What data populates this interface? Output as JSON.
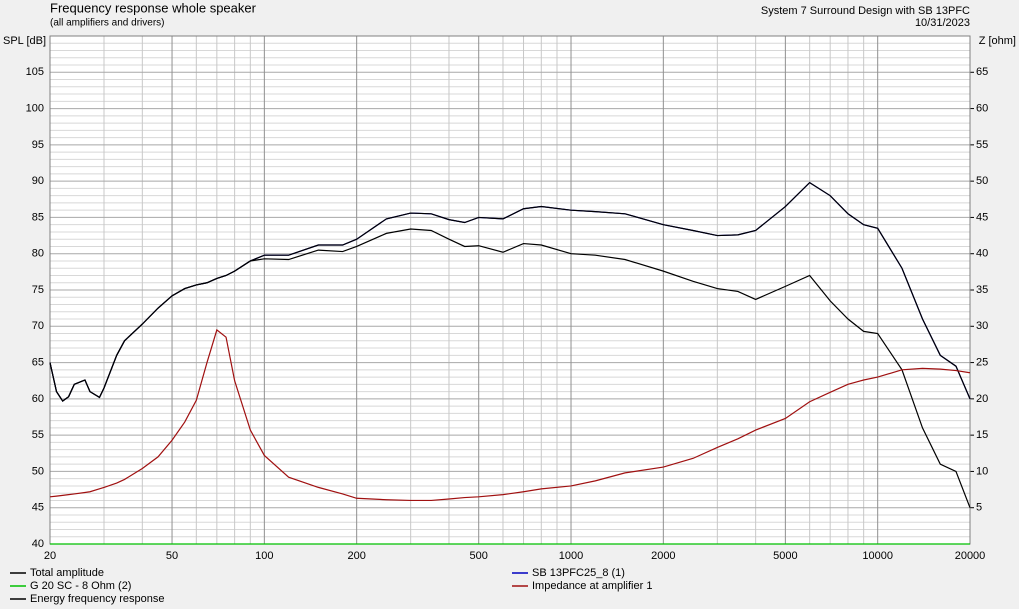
{
  "chart_data": {
    "type": "line",
    "title": "Frequency response whole speaker",
    "subtitle": "(all amplifiers and drivers)",
    "project": "System 7 Surround Design with SB 13PFC",
    "date": "10/31/2023",
    "y_label": "SPL [dB]",
    "y2_label": "Z [ohm]",
    "log_x": true,
    "grid": true,
    "x": [
      20,
      21,
      22,
      23,
      24,
      26,
      27,
      29,
      30,
      33,
      35,
      40,
      45,
      50,
      55,
      60,
      65,
      70,
      75,
      80,
      90,
      100,
      120,
      150,
      180,
      200,
      250,
      300,
      350,
      400,
      450,
      500,
      600,
      700,
      800,
      1000,
      1200,
      1500,
      2000,
      2500,
      3000,
      3500,
      4000,
      5000,
      6000,
      7000,
      8000,
      9000,
      10000,
      12000,
      14000,
      16000,
      18000,
      20000
    ],
    "xlim": [
      20,
      20000
    ],
    "xticks": [
      20,
      50,
      100,
      200,
      500,
      1000,
      2000,
      5000,
      10000,
      20000
    ],
    "xminor_ticks": [
      30,
      40,
      60,
      70,
      80,
      90,
      300,
      400,
      600,
      700,
      800,
      900,
      3000,
      4000,
      6000,
      7000,
      8000,
      9000
    ],
    "ylim": [
      40,
      110
    ],
    "yticks": [
      40,
      45,
      50,
      55,
      60,
      65,
      70,
      75,
      80,
      85,
      90,
      95,
      100,
      105
    ],
    "yminor_ticks": [
      41,
      42,
      43,
      44,
      46,
      47,
      48,
      49,
      51,
      52,
      53,
      54,
      56,
      57,
      58,
      59,
      61,
      62,
      63,
      64,
      66,
      67,
      68,
      69,
      71,
      72,
      73,
      74,
      76,
      77,
      78,
      79,
      81,
      82,
      83,
      84,
      86,
      87,
      88,
      89,
      91,
      92,
      93,
      94,
      96,
      97,
      98,
      99,
      101,
      102,
      103,
      104,
      106,
      107,
      108,
      109
    ],
    "y2lim": [
      0,
      70
    ],
    "y2ticks": [
      5,
      10,
      15,
      20,
      25,
      30,
      35,
      40,
      45,
      50,
      55,
      60,
      65
    ],
    "series": [
      {
        "name": "Total amplitude",
        "color": "#000000",
        "values": [
          65,
          61,
          59.7,
          60.3,
          62,
          62.6,
          61,
          60.2,
          61.5,
          66,
          68,
          70.3,
          72.5,
          74.2,
          75.2,
          75.7,
          76,
          76.6,
          77,
          77.6,
          79,
          79.8,
          79.8,
          81.2,
          81.2,
          82,
          84.8,
          85.6,
          85.5,
          84.7,
          84.3,
          85,
          84.8,
          86.2,
          86.5,
          86,
          85.8,
          85.5,
          84,
          83.2,
          82.5,
          82.6,
          83.2,
          86.5,
          89.8,
          88,
          85.5,
          84,
          83.5,
          78,
          71,
          66,
          64.5,
          60
        ]
      },
      {
        "name": "G 20 SC - 8 Ohm (2)",
        "color": "#00c000",
        "values": [
          40,
          40,
          40,
          40,
          40,
          40,
          40,
          40,
          40,
          40,
          40,
          40,
          40,
          40,
          40,
          40,
          40,
          40,
          40,
          40,
          40,
          40,
          40,
          40,
          40,
          40,
          40,
          40,
          40,
          40,
          40,
          40,
          40,
          40,
          40,
          40,
          40,
          40,
          40,
          40,
          40,
          40,
          40,
          40,
          40,
          40,
          40,
          40,
          40,
          40,
          40,
          40,
          40,
          40
        ]
      },
      {
        "name": "Energy frequency response",
        "color": "#000000",
        "values": [
          65,
          61,
          59.7,
          60.3,
          62,
          62.6,
          61,
          60.2,
          61.5,
          66,
          68,
          70.3,
          72.5,
          74.2,
          75.2,
          75.7,
          76,
          76.6,
          77,
          77.6,
          79,
          79.3,
          79.2,
          80.5,
          80.3,
          81,
          82.8,
          83.4,
          83.2,
          82,
          81,
          81.1,
          80.2,
          81.4,
          81.2,
          80,
          79.8,
          79.2,
          77.6,
          76.2,
          75.2,
          74.8,
          73.7,
          75.5,
          77,
          73.5,
          71,
          69.3,
          69,
          64,
          56,
          51,
          50,
          45
        ]
      },
      {
        "name": "SB 13PFC25_8 (1)",
        "color": "#0000c0",
        "values": [
          65,
          61,
          59.7,
          60.3,
          62,
          62.6,
          61,
          60.2,
          61.5,
          66,
          68,
          70.3,
          72.5,
          74.2,
          75.2,
          75.7,
          76,
          76.6,
          77,
          77.6,
          79,
          79.8,
          79.8,
          81.2,
          81.2,
          82,
          84.8,
          85.6,
          85.5,
          84.7,
          84.3,
          85,
          84.8,
          86.2,
          86.5,
          86,
          85.8,
          85.5,
          84,
          83.2,
          82.5,
          82.6,
          83.2,
          86.5,
          89.8,
          88,
          85.5,
          84,
          83.5,
          78,
          71,
          66,
          64.5,
          60
        ]
      },
      {
        "name": "Impedance at amplifier 1",
        "color": "#a01010",
        "axis": "y2",
        "values": [
          6.5,
          6.6,
          6.7,
          6.8,
          6.9,
          7.1,
          7.2,
          7.6,
          7.8,
          8.4,
          8.9,
          10.4,
          12,
          14.3,
          16.8,
          19.8,
          25,
          29.5,
          28.5,
          22.5,
          15.7,
          12.2,
          9.2,
          7.8,
          6.9,
          6.3,
          6.1,
          6,
          6,
          6.2,
          6.4,
          6.5,
          6.8,
          7.2,
          7.6,
          8,
          8.7,
          9.8,
          10.6,
          11.8,
          13.3,
          14.5,
          15.7,
          17.3,
          19.6,
          20.9,
          22,
          22.6,
          23,
          24,
          24.2,
          24.1,
          23.9,
          23.6
        ]
      }
    ]
  }
}
